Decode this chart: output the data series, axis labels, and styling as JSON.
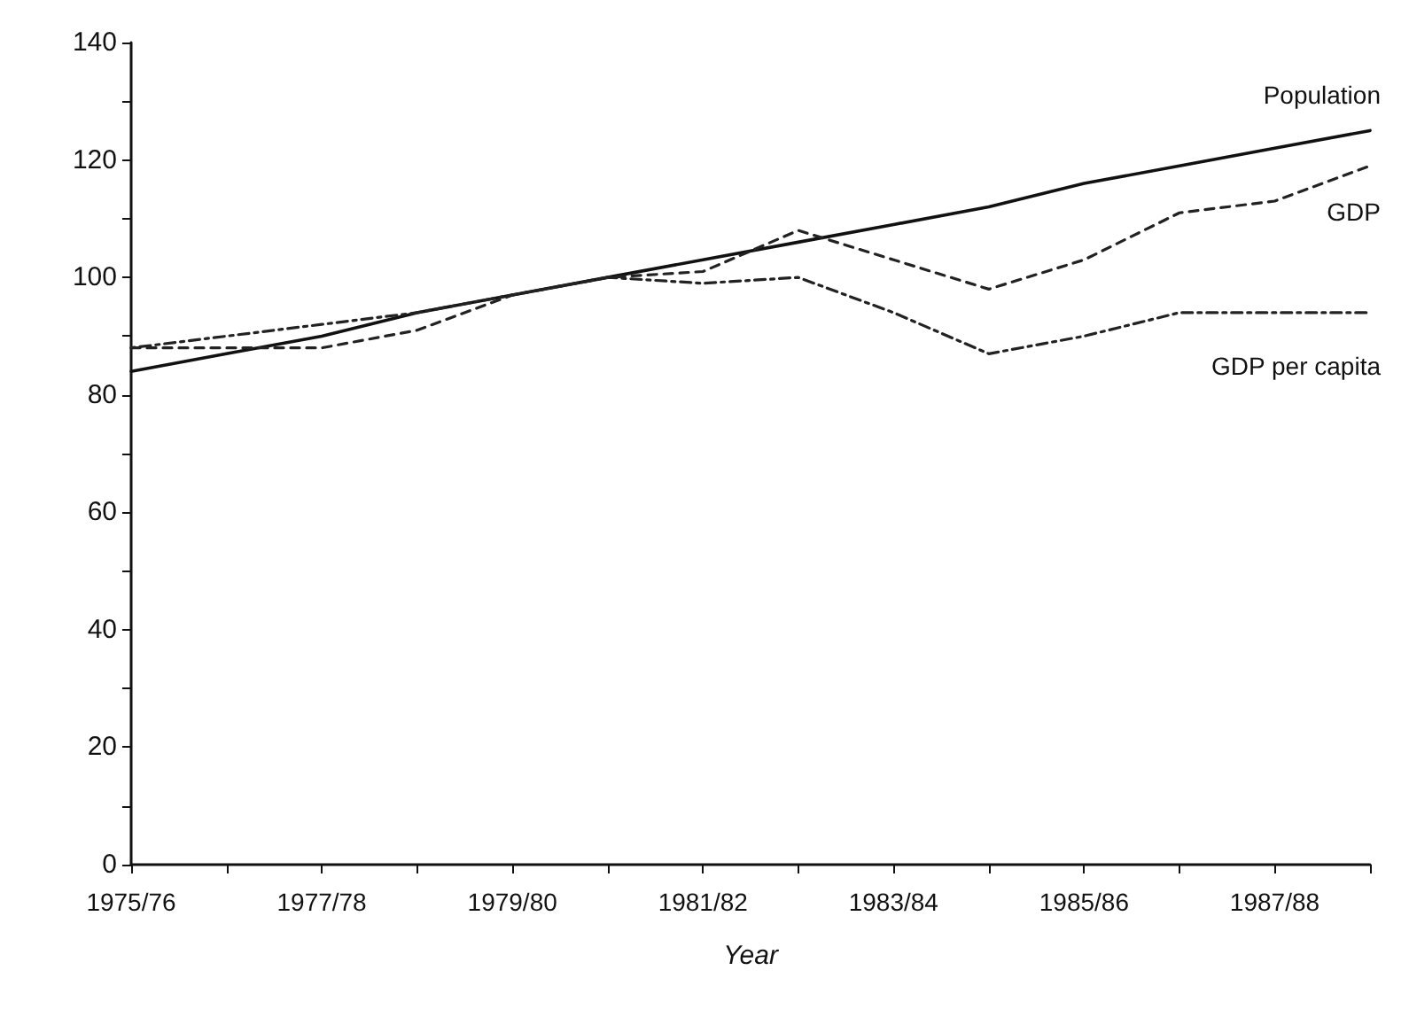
{
  "chart_data": {
    "type": "line",
    "xlabel": "Year",
    "categories": [
      "1975/76",
      null,
      "1977/78",
      null,
      "1979/80",
      null,
      "1981/82",
      null,
      "1983/84",
      null,
      "1985/86",
      null,
      "1987/88",
      null
    ],
    "series": [
      {
        "name": "Population",
        "color": "#111111",
        "line_style": "solid",
        "values": [
          84,
          87,
          90,
          94,
          97,
          100,
          103,
          106,
          109,
          112,
          116,
          119,
          122,
          125
        ]
      },
      {
        "name": "GDP",
        "color": "#222222",
        "line_style": "dashed",
        "values": [
          88,
          88,
          88,
          91,
          97,
          100,
          101,
          108,
          103,
          98,
          103,
          111,
          113,
          119
        ]
      },
      {
        "name": "GDP per capita",
        "color": "#222222",
        "line_style": "dotted",
        "values": [
          88,
          90,
          92,
          94,
          97,
          100,
          99,
          100,
          94,
          87,
          90,
          94,
          94,
          94
        ]
      }
    ],
    "ylim": [
      0,
      140
    ],
    "yticks": [
      0,
      20,
      40,
      60,
      80,
      100,
      120,
      140
    ],
    "grid": false,
    "legend": false,
    "marker": "none"
  }
}
